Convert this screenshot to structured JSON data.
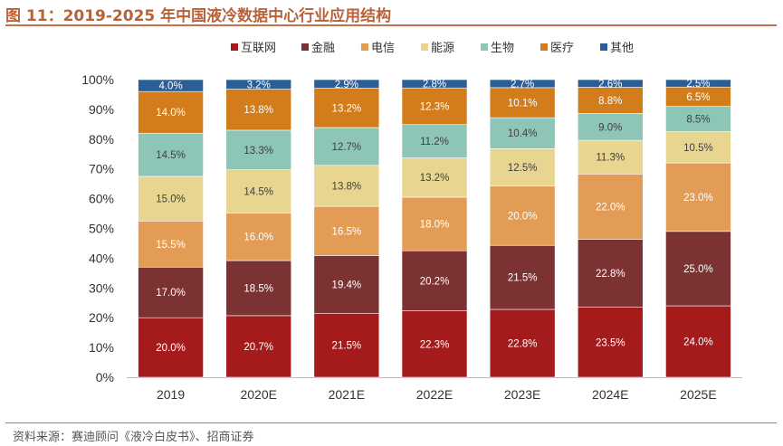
{
  "title": "图 11：2019-2025 年中国液冷数据中心行业应用结构",
  "footer": "资料来源：赛迪顾问《液冷白皮书》、招商证券",
  "chart_data": {
    "type": "bar",
    "stacked": true,
    "categories": [
      "2019",
      "2020E",
      "2021E",
      "2022E",
      "2023E",
      "2024E",
      "2025E"
    ],
    "ylim": [
      0,
      100
    ],
    "yticks": [
      "0%",
      "10%",
      "20%",
      "30%",
      "40%",
      "50%",
      "60%",
      "70%",
      "80%",
      "90%",
      "100%"
    ],
    "legend_position": "top",
    "grid": false,
    "series": [
      {
        "name": "互联网",
        "color": "#a51b1b",
        "label_color": "#ffffff",
        "values": [
          20.0,
          20.7,
          21.5,
          22.3,
          22.8,
          23.5,
          24.0
        ]
      },
      {
        "name": "金融",
        "color": "#7c3232",
        "label_color": "#ffffff",
        "values": [
          17.0,
          18.5,
          19.4,
          20.2,
          21.5,
          22.8,
          25.0
        ]
      },
      {
        "name": "电信",
        "color": "#e39c55",
        "label_color": "#ffffff",
        "values": [
          15.5,
          16.0,
          16.5,
          18.0,
          20.0,
          22.0,
          23.0
        ]
      },
      {
        "name": "能源",
        "color": "#e8d690",
        "label_color": "#404040",
        "values": [
          15.0,
          14.5,
          13.8,
          13.2,
          12.5,
          11.3,
          10.5
        ]
      },
      {
        "name": "生物",
        "color": "#8dc5b7",
        "label_color": "#404040",
        "values": [
          14.5,
          13.3,
          12.7,
          11.2,
          10.4,
          9.0,
          8.5
        ]
      },
      {
        "name": "医疗",
        "color": "#d27c1c",
        "label_color": "#ffffff",
        "values": [
          14.0,
          13.8,
          13.2,
          12.3,
          10.1,
          8.8,
          6.5
        ]
      },
      {
        "name": "其他",
        "color": "#2b5e96",
        "label_color": "#ffffff",
        "values": [
          4.0,
          3.2,
          2.9,
          2.8,
          2.7,
          2.6,
          2.5
        ]
      }
    ]
  }
}
